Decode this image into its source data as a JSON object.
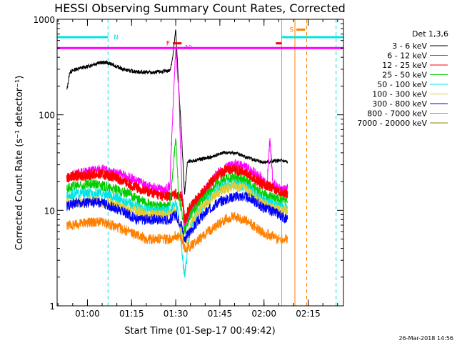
{
  "chart_data": {
    "type": "line",
    "title": "HESSI Observing Summary Count Rates, Corrected",
    "xlabel": "Start Time (01-Sep-17 00:49:42)",
    "ylabel": "Corrected Count Rate (s⁻¹ detector⁻¹)",
    "yscale": "log",
    "ylim": [
      1,
      1000
    ],
    "xlim": [
      "00:49:42",
      "02:27:00"
    ],
    "x_ticks": [
      "01:00",
      "01:15",
      "01:30",
      "01:45",
      "02:00",
      "02:15"
    ],
    "y_ticks": [
      "1",
      "10",
      "100",
      "1000"
    ],
    "legend_title": "Det 1,3,6",
    "legend_position": "right",
    "timestamp": "26-Mar-2018 14:56",
    "series": [
      {
        "name": "3 - 6 keV",
        "color": "#000000",
        "x": [
          "00:53",
          "00:54",
          "00:56",
          "00:58",
          "01:00",
          "01:02",
          "01:04",
          "01:06",
          "01:08",
          "01:10",
          "01:12",
          "01:14",
          "01:16",
          "01:18",
          "01:20",
          "01:22",
          "01:24",
          "01:26",
          "01:28",
          "01:29",
          "01:30",
          "01:31",
          "01:32",
          "01:33",
          "01:34",
          "01:36",
          "01:38",
          "01:40",
          "01:42",
          "01:44",
          "01:46",
          "01:48",
          "01:50",
          "01:52",
          "01:54",
          "01:56",
          "01:58",
          "02:00",
          "02:02",
          "02:04",
          "02:06",
          "02:08"
        ],
        "y": [
          180,
          280,
          300,
          310,
          320,
          340,
          350,
          355,
          340,
          320,
          300,
          290,
          285,
          280,
          280,
          275,
          280,
          285,
          290,
          400,
          780,
          200,
          60,
          15,
          32,
          33,
          34,
          35,
          36,
          38,
          40,
          40,
          40,
          38,
          36,
          34,
          33,
          32,
          32,
          33,
          33,
          32
        ]
      },
      {
        "name": "6 - 12 keV",
        "color": "#ff00ff",
        "x": [
          "00:53",
          "00:56",
          "00:59",
          "01:02",
          "01:05",
          "01:08",
          "01:11",
          "01:14",
          "01:17",
          "01:20",
          "01:23",
          "01:26",
          "01:28",
          "01:29",
          "01:30",
          "01:31",
          "01:32",
          "01:33",
          "01:35",
          "01:38",
          "01:41",
          "01:44",
          "01:47",
          "01:50",
          "01:53",
          "01:56",
          "01:59",
          "02:01",
          "02:02",
          "02:03",
          "02:04",
          "02:06",
          "02:08"
        ],
        "y": [
          22,
          24,
          25,
          26,
          27,
          25,
          24,
          22,
          20,
          18,
          17,
          16,
          18,
          110,
          480,
          200,
          20,
          7,
          10,
          13,
          18,
          24,
          28,
          30,
          29,
          26,
          22,
          18,
          55,
          20,
          18,
          16,
          17
        ]
      },
      {
        "name": "12 - 25 keV",
        "color": "#ff0000",
        "x": [
          "00:53",
          "00:56",
          "00:59",
          "01:02",
          "01:05",
          "01:08",
          "01:11",
          "01:14",
          "01:17",
          "01:20",
          "01:23",
          "01:26",
          "01:28",
          "01:30",
          "01:32",
          "01:33",
          "01:35",
          "01:38",
          "01:41",
          "01:44",
          "01:47",
          "01:50",
          "01:53",
          "01:56",
          "01:59",
          "02:02",
          "02:05",
          "02:08"
        ],
        "y": [
          22,
          23,
          23,
          24,
          24,
          23,
          21,
          19,
          17,
          16,
          15,
          14,
          14,
          15,
          14,
          8,
          11,
          14,
          18,
          23,
          26,
          27,
          25,
          22,
          19,
          18,
          16,
          15
        ]
      },
      {
        "name": "25 - 50 keV",
        "color": "#00cc00",
        "x": [
          "00:53",
          "00:56",
          "00:59",
          "01:02",
          "01:05",
          "01:08",
          "01:11",
          "01:14",
          "01:17",
          "01:20",
          "01:23",
          "01:26",
          "01:28",
          "01:29",
          "01:30",
          "01:31",
          "01:32",
          "01:33",
          "01:35",
          "01:38",
          "01:41",
          "01:44",
          "01:47",
          "01:50",
          "01:53",
          "01:56",
          "01:59",
          "02:02",
          "02:05",
          "02:08"
        ],
        "y": [
          17,
          18,
          18,
          19,
          18,
          17,
          16,
          15,
          13,
          12,
          11,
          11,
          11,
          25,
          60,
          14,
          10,
          6,
          9,
          12,
          15,
          19,
          21,
          22,
          21,
          18,
          15,
          14,
          13,
          12
        ]
      },
      {
        "name": "50 - 100 keV",
        "color": "#00e5e5",
        "x": [
          "00:53",
          "00:56",
          "00:59",
          "01:02",
          "01:05",
          "01:08",
          "01:11",
          "01:14",
          "01:17",
          "01:20",
          "01:23",
          "01:26",
          "01:28",
          "01:30",
          "01:31",
          "01:32",
          "01:33",
          "01:35",
          "01:38",
          "01:41",
          "01:44",
          "01:47",
          "01:50",
          "01:53",
          "01:56",
          "01:59",
          "02:02",
          "02:05",
          "02:08"
        ],
        "y": [
          14,
          15,
          15,
          15,
          15,
          14,
          13,
          12,
          11,
          10,
          10,
          10,
          10,
          12,
          9,
          4,
          2,
          7,
          10,
          13,
          16,
          19,
          19,
          18,
          16,
          13,
          12,
          11,
          11
        ]
      },
      {
        "name": "100 - 300 keV",
        "color": "#e5cc33",
        "x": [
          "00:53",
          "00:56",
          "00:59",
          "01:02",
          "01:05",
          "01:08",
          "01:11",
          "01:14",
          "01:17",
          "01:20",
          "01:23",
          "01:26",
          "01:28",
          "01:30",
          "01:32",
          "01:33",
          "01:35",
          "01:38",
          "01:41",
          "01:44",
          "01:47",
          "01:50",
          "01:53",
          "01:56",
          "01:59",
          "02:02",
          "02:05",
          "02:08"
        ],
        "y": [
          12,
          12,
          12,
          13,
          12,
          12,
          11,
          10,
          10,
          9,
          9,
          9,
          9,
          10,
          6,
          4,
          7,
          10,
          12,
          15,
          17,
          18,
          17,
          15,
          12,
          11,
          10,
          10
        ]
      },
      {
        "name": "300 - 800 keV",
        "color": "#0000ff",
        "x": [
          "00:53",
          "00:56",
          "00:59",
          "01:02",
          "01:05",
          "01:08",
          "01:11",
          "01:14",
          "01:17",
          "01:20",
          "01:23",
          "01:26",
          "01:28",
          "01:30",
          "01:32",
          "01:33",
          "01:35",
          "01:38",
          "01:41",
          "01:44",
          "01:47",
          "01:50",
          "01:53",
          "01:56",
          "01:59",
          "02:02",
          "02:05",
          "02:08"
        ],
        "y": [
          11,
          12,
          12,
          12,
          12,
          11,
          10,
          9,
          8,
          8,
          8,
          8,
          8,
          9,
          7,
          5,
          6,
          8,
          10,
          12,
          13,
          14,
          14,
          13,
          11,
          10,
          9,
          8
        ]
      },
      {
        "name": "800 - 7000 keV",
        "color": "#ff8000",
        "x": [
          "00:53",
          "00:56",
          "00:59",
          "01:02",
          "01:05",
          "01:08",
          "01:11",
          "01:14",
          "01:17",
          "01:20",
          "01:23",
          "01:26",
          "01:28",
          "01:30",
          "01:32",
          "01:33",
          "01:35",
          "01:38",
          "01:41",
          "01:44",
          "01:47",
          "01:50",
          "01:53",
          "01:56",
          "01:59",
          "02:02",
          "02:05",
          "02:08"
        ],
        "y": [
          7,
          7,
          7.5,
          7.5,
          7.5,
          7,
          6.5,
          6,
          5.5,
          5,
          5,
          5,
          5,
          5.5,
          5,
          4,
          4.2,
          5,
          6,
          7,
          8,
          8.5,
          8,
          7,
          6,
          5.5,
          5,
          5
        ]
      },
      {
        "name": "7000 - 20000 keV",
        "color": "#8b8000",
        "x": [],
        "y": []
      }
    ],
    "annotations": [
      {
        "type": "hline",
        "label": "A0",
        "y": 500,
        "x_start": "00:49:42",
        "x_end": "02:27:00",
        "color": "#ff00ff"
      },
      {
        "type": "bar",
        "label": "N",
        "y": 650,
        "x_start": "00:49:42",
        "x_end": "01:07:00",
        "color": "#00e5e5"
      },
      {
        "type": "bar",
        "label": "",
        "y": 650,
        "x_start": "02:06:00",
        "x_end": "02:27:00",
        "color": "#00e5e5"
      },
      {
        "type": "bar",
        "label": "F",
        "y": 560,
        "x_start": "01:29:00",
        "x_end": "01:32:00",
        "color": "#ff0000"
      },
      {
        "type": "bar",
        "label": "",
        "y": 560,
        "x_start": "02:04:00",
        "x_end": "02:06:00",
        "color": "#ff0000"
      },
      {
        "type": "bar",
        "label": "S",
        "y": 780,
        "x_start": "02:11:00",
        "x_end": "02:14:00",
        "color": "#ff8000"
      }
    ],
    "vlines": [
      {
        "x": "00:49:42",
        "color": "#00e5e5",
        "style": "solid"
      },
      {
        "x": "01:07:00",
        "color": "#00e5e5",
        "style": "dashed"
      },
      {
        "x": "02:06:00",
        "color": "#00e5e5",
        "style": "solid"
      },
      {
        "x": "02:10:30",
        "color": "#ff8000",
        "style": "solid"
      },
      {
        "x": "02:14:30",
        "color": "#ff8000",
        "style": "dashed"
      },
      {
        "x": "02:24:30",
        "color": "#00e5e5",
        "style": "dashed"
      }
    ]
  }
}
